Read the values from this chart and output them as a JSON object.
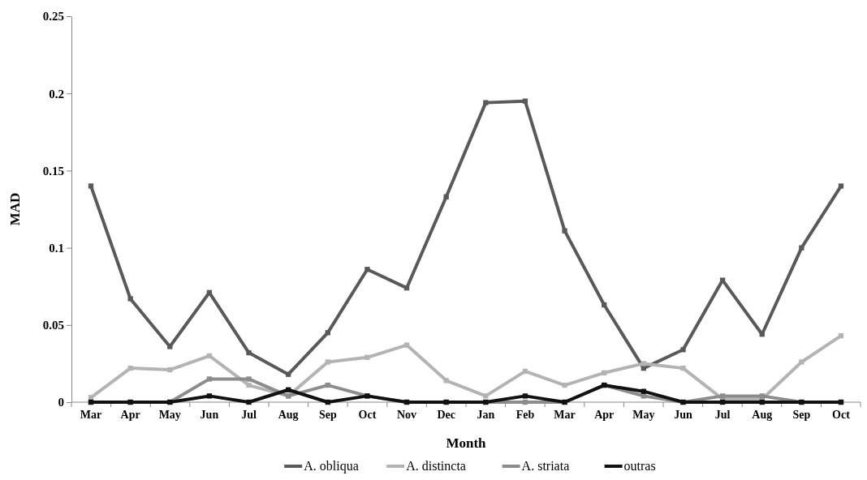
{
  "chart_data": {
    "type": "line",
    "xlabel": "Month",
    "ylabel": "MAD",
    "categories": [
      "Mar",
      "Apr",
      "May",
      "Jun",
      "Jul",
      "Aug",
      "Sep",
      "Oct",
      "Nov",
      "Dec",
      "Jan",
      "Feb",
      "Mar",
      "Apr",
      "May",
      "Jun",
      "Jul",
      "Aug",
      "Sep",
      "Oct"
    ],
    "ylim": [
      0,
      0.25
    ],
    "yticks": [
      0,
      0.05,
      0.1,
      0.15,
      0.2,
      0.25
    ],
    "grid": false,
    "legend": "bottom",
    "marker": "square",
    "line_style": "solid",
    "series": [
      {
        "name": "A. obliqua",
        "color": "#595959",
        "values": [
          0.14,
          0.067,
          0.036,
          0.071,
          0.032,
          0.018,
          0.045,
          0.086,
          0.074,
          0.133,
          0.194,
          0.195,
          0.111,
          0.063,
          0.022,
          0.034,
          0.079,
          0.044,
          0.1,
          0.14
        ]
      },
      {
        "name": "A. distincta",
        "color": "#b3b3b3",
        "values": [
          0.003,
          0.022,
          0.021,
          0.03,
          0.011,
          0.004,
          0.026,
          0.029,
          0.037,
          0.014,
          0.004,
          0.02,
          0.011,
          0.019,
          0.025,
          0.022,
          0.002,
          0.002,
          0.026,
          0.043
        ]
      },
      {
        "name": "A. striata",
        "color": "#8c8c8c",
        "values": [
          0,
          0,
          0,
          0.015,
          0.015,
          0.004,
          0.011,
          0.004,
          0,
          0,
          0,
          0,
          0,
          0.011,
          0.004,
          0,
          0.004,
          0.004,
          0,
          0
        ]
      },
      {
        "name": "outras",
        "color": "#111111",
        "values": [
          0,
          0,
          0,
          0.004,
          0,
          0.008,
          0,
          0.004,
          0,
          0,
          0,
          0.004,
          0,
          0.011,
          0.007,
          0,
          0,
          0,
          0,
          0
        ]
      }
    ]
  }
}
